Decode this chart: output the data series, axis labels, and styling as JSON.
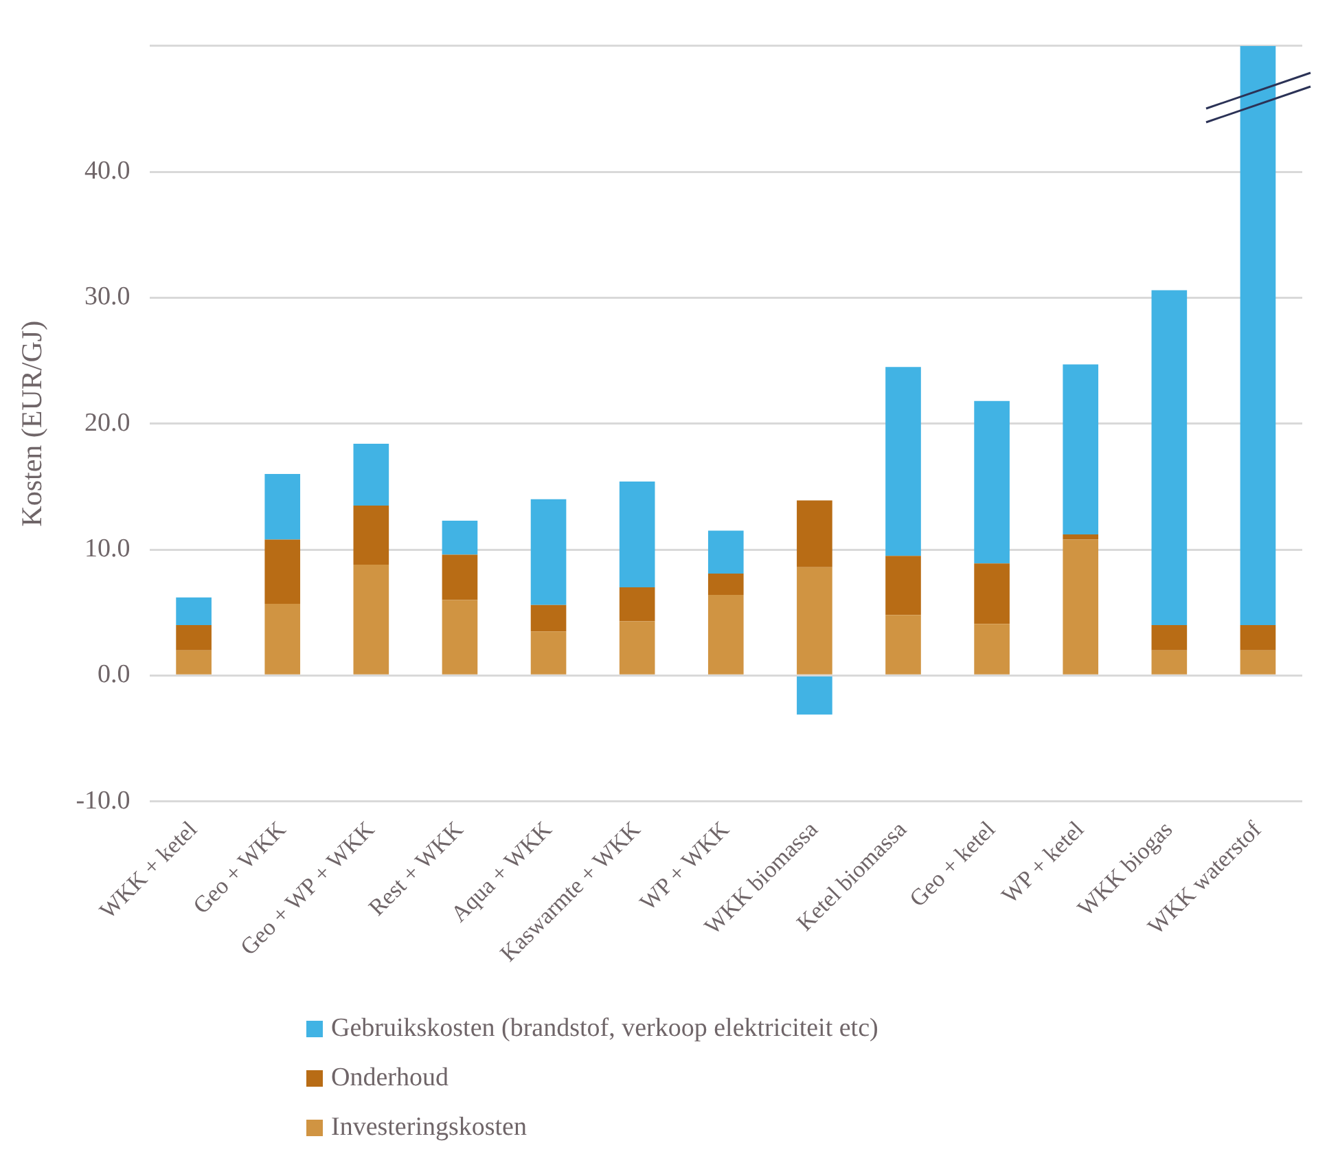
{
  "chart_data": {
    "type": "bar",
    "stacked": true,
    "ylabel": "Kosten (EUR/GJ)",
    "categories": [
      "WKK + ketel",
      "Geo + WKK",
      "Geo + WP + WKK",
      "Rest + WKK",
      "Aqua + WKK",
      "Kaswarmte + WKK",
      "WP + WKK",
      "WKK biomassa",
      "Ketel biomassa",
      "Geo + ketel",
      "WP + ketel",
      "WKK biogas",
      "WKK waterstof"
    ],
    "series": [
      {
        "name": "Investeringskosten",
        "color": "#d09442",
        "values": [
          2.0,
          5.7,
          8.8,
          6.0,
          3.5,
          4.3,
          6.4,
          8.6,
          4.8,
          4.1,
          10.8,
          2.0,
          2.0
        ]
      },
      {
        "name": "Onderhoud",
        "color": "#b86c15",
        "values": [
          2.0,
          5.1,
          4.7,
          3.6,
          2.1,
          2.7,
          1.7,
          5.3,
          4.7,
          4.8,
          0.4,
          2.0,
          2.0
        ]
      },
      {
        "name": "Gebruikskosten (brandstof, verkoop elektriciteit etc)",
        "color": "#41b3e4",
        "values": [
          2.2,
          5.2,
          4.9,
          2.7,
          8.4,
          8.4,
          3.4,
          -3.1,
          15.0,
          12.9,
          13.5,
          26.6,
          46.0
        ]
      }
    ],
    "ylim": [
      -10,
      50
    ],
    "yticks": [
      {
        "value": -10,
        "label": "-10.0"
      },
      {
        "value": 0,
        "label": "0.0"
      },
      {
        "value": 10,
        "label": "10.0"
      },
      {
        "value": 20,
        "label": "20.0"
      },
      {
        "value": 30,
        "label": "30.0"
      },
      {
        "value": 40,
        "label": "40.0"
      },
      {
        "value": 50,
        "label": null
      }
    ],
    "grid": "y",
    "legend": "bottom"
  }
}
